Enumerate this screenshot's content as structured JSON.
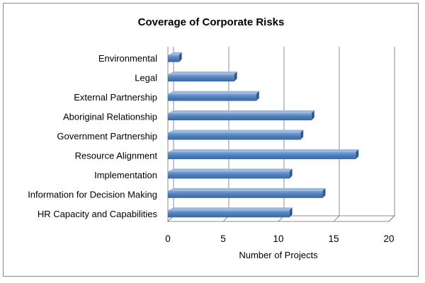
{
  "chart_data": {
    "type": "bar",
    "orientation": "horizontal",
    "style": "3d",
    "title": "Coverage of Corporate Risks",
    "xlabel": "Number of Projects",
    "ylabel": "",
    "xlim": [
      0,
      20
    ],
    "xticks": [
      "0",
      "5",
      "10",
      "15",
      "20"
    ],
    "grid": true,
    "legend": "none",
    "bar_color": "#4f81bd",
    "categories": [
      "Environmental",
      "Legal",
      "External Partnership",
      "Aboriginal Relationship",
      "Government Partnership",
      "Resource Alignment",
      "Implementation",
      "Information for Decision Making",
      "HR Capacity and Capabilities"
    ],
    "values": [
      1,
      6,
      8,
      13,
      12,
      17,
      11,
      14,
      11
    ]
  }
}
